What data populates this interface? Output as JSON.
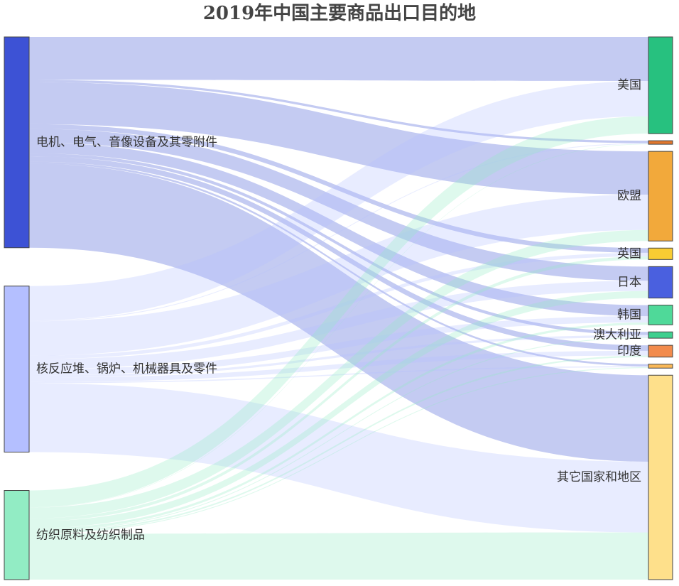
{
  "chart_data": {
    "type": "sankey",
    "title": "2019年中国主要商品出口目的地",
    "sources": [
      {
        "name": "电机、电气、音像设备及其零附件",
        "color": "#3d52d5"
      },
      {
        "name": "核反应堆、锅炉、机械器具及零件",
        "color": "#b4bfff"
      },
      {
        "name": "纺织原料及纺织制品",
        "color": "#92ecc4"
      }
    ],
    "targets": [
      {
        "name": "美国",
        "color": "#27c17f"
      },
      {
        "name": "",
        "color": "#e0772d"
      },
      {
        "name": "欧盟",
        "color": "#f2a93b"
      },
      {
        "name": "英国",
        "color": "#f8cc33"
      },
      {
        "name": "日本",
        "color": "#4a60df"
      },
      {
        "name": "韩国",
        "color": "#4fd999"
      },
      {
        "name": "澳大利亚",
        "color": "#3ecf8e"
      },
      {
        "name": "印度",
        "color": "#f28b4c"
      },
      {
        "name": "",
        "color": "#f9b857"
      },
      {
        "name": "其它国家和地区",
        "color": "#fee08b"
      }
    ],
    "links": [
      {
        "source": 0,
        "target": 0,
        "value": 560
      },
      {
        "source": 0,
        "target": 1,
        "value": 30
      },
      {
        "source": 0,
        "target": 2,
        "value": 550
      },
      {
        "source": 0,
        "target": 3,
        "value": 60
      },
      {
        "source": 0,
        "target": 4,
        "value": 180
      },
      {
        "source": 0,
        "target": 5,
        "value": 140
      },
      {
        "source": 0,
        "target": 6,
        "value": 40
      },
      {
        "source": 0,
        "target": 7,
        "value": 70
      },
      {
        "source": 0,
        "target": 8,
        "value": 25
      },
      {
        "source": 0,
        "target": 9,
        "value": 1100
      },
      {
        "source": 1,
        "target": 0,
        "value": 450
      },
      {
        "source": 1,
        "target": 1,
        "value": 10
      },
      {
        "source": 1,
        "target": 2,
        "value": 450
      },
      {
        "source": 1,
        "target": 3,
        "value": 45
      },
      {
        "source": 1,
        "target": 4,
        "value": 130
      },
      {
        "source": 1,
        "target": 5,
        "value": 80
      },
      {
        "source": 1,
        "target": 6,
        "value": 30
      },
      {
        "source": 1,
        "target": 7,
        "value": 60
      },
      {
        "source": 1,
        "target": 8,
        "value": 15
      },
      {
        "source": 1,
        "target": 9,
        "value": 900
      },
      {
        "source": 2,
        "target": 0,
        "value": 220
      },
      {
        "source": 2,
        "target": 1,
        "value": 5
      },
      {
        "source": 2,
        "target": 2,
        "value": 140
      },
      {
        "source": 2,
        "target": 3,
        "value": 40
      },
      {
        "source": 2,
        "target": 4,
        "value": 90
      },
      {
        "source": 2,
        "target": 5,
        "value": 30
      },
      {
        "source": 2,
        "target": 6,
        "value": 10
      },
      {
        "source": 2,
        "target": 7,
        "value": 20
      },
      {
        "source": 2,
        "target": 8,
        "value": 10
      },
      {
        "source": 2,
        "target": 9,
        "value": 600
      }
    ]
  }
}
